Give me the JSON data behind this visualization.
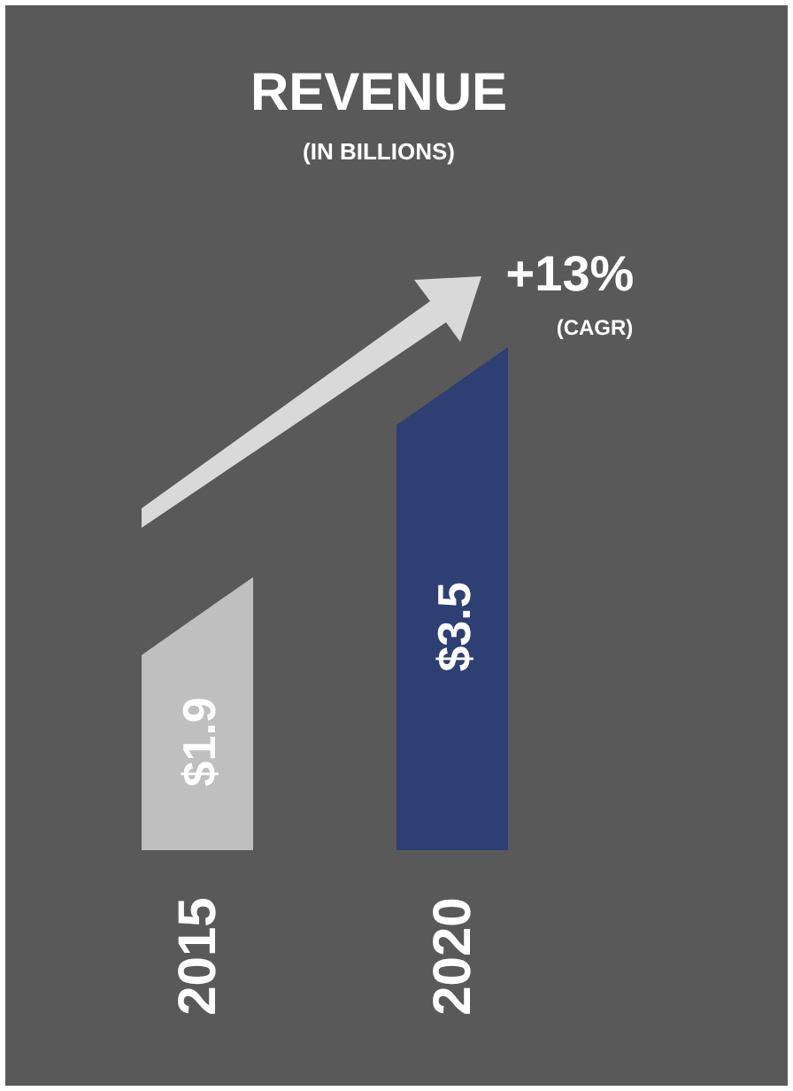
{
  "chart_data": {
    "type": "bar",
    "title": "REVENUE",
    "subtitle": "(IN BILLIONS)",
    "categories": [
      "2015",
      "2020"
    ],
    "values": [
      1.9,
      3.5
    ],
    "value_labels": [
      "$1.9",
      "$3.5"
    ],
    "colors": [
      "#bfbfbf",
      "#2e3f73"
    ],
    "annotations": [
      "+13%",
      "(CAGR)"
    ]
  }
}
